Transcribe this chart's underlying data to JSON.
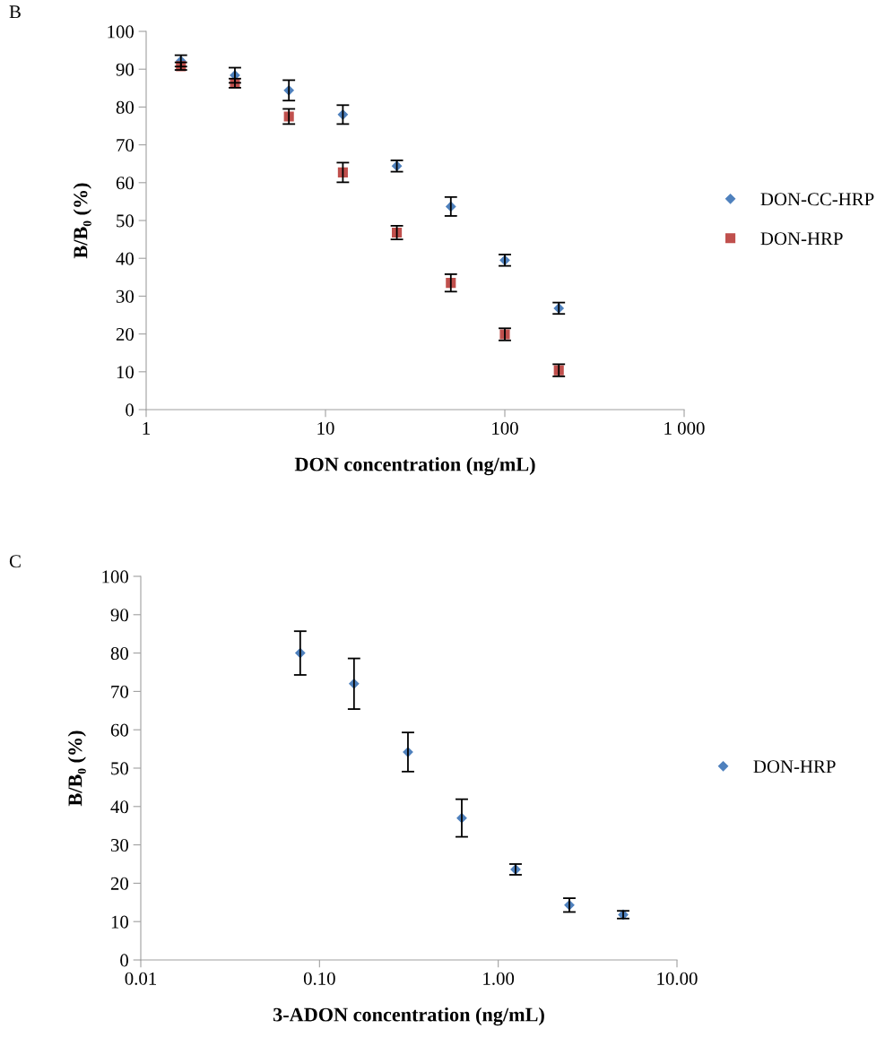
{
  "chart_data": [
    {
      "type": "scatter",
      "xlabel": "DON concentration (ng/mL)",
      "ylabel": "B/B₀ (%)",
      "annotations": [
        "B"
      ],
      "x": [
        1.5625,
        3.125,
        6.25,
        12.5,
        25,
        50,
        100,
        200
      ],
      "series": [
        {
          "name": "DON-CC-HRP",
          "color": "#4f81bd",
          "marker": "diamond",
          "values": [
            92.2,
            88.4,
            84.4,
            78.0,
            64.4,
            53.7,
            39.5,
            26.8
          ],
          "errors": [
            1.5,
            2.0,
            2.7,
            2.5,
            1.5,
            2.5,
            1.5,
            1.5
          ]
        },
        {
          "name": "DON-HRP",
          "color": "#c0504d",
          "marker": "square",
          "values": [
            90.8,
            86.3,
            77.5,
            62.7,
            46.8,
            33.5,
            19.9,
            10.4
          ],
          "errors": [
            1.0,
            1.2,
            2.0,
            2.6,
            1.8,
            2.3,
            1.6,
            1.6
          ]
        }
      ],
      "log": "x",
      "xlim": [
        1,
        1000
      ],
      "xticks": [
        1,
        10,
        100,
        {
          "value": 1000,
          "label": "1 000"
        }
      ],
      "ylim": [
        0,
        100
      ],
      "yticks": [
        0,
        10,
        20,
        30,
        40,
        50,
        60,
        70,
        80,
        90,
        100
      ],
      "grid": false,
      "legend": "right"
    },
    {
      "type": "scatter",
      "xlabel": "3-ADON concentration (ng/mL)",
      "ylabel": "B/B₀ (%)",
      "annotations": [
        "C"
      ],
      "x": [
        0.078,
        0.156,
        0.3125,
        0.625,
        1.25,
        2.5,
        5
      ],
      "series": [
        {
          "name": "DON-HRP",
          "color": "#4f81bd",
          "marker": "diamond",
          "values": [
            80.0,
            72.0,
            54.2,
            37.0,
            23.6,
            14.3,
            11.8
          ],
          "errors": [
            5.7,
            6.6,
            5.1,
            4.9,
            1.4,
            1.8,
            1.0
          ]
        }
      ],
      "log": "x",
      "xlim": [
        0.01,
        10
      ],
      "xticks": [
        {
          "value": 0.01,
          "label": "0.01"
        },
        {
          "value": 0.1,
          "label": "0.10"
        },
        {
          "value": 1,
          "label": "1.00"
        },
        {
          "value": 10,
          "label": "10.00"
        }
      ],
      "ylim": [
        0,
        100
      ],
      "yticks": [
        0,
        10,
        20,
        30,
        40,
        50,
        60,
        70,
        80,
        90,
        100
      ],
      "grid": false,
      "legend": "right"
    }
  ]
}
